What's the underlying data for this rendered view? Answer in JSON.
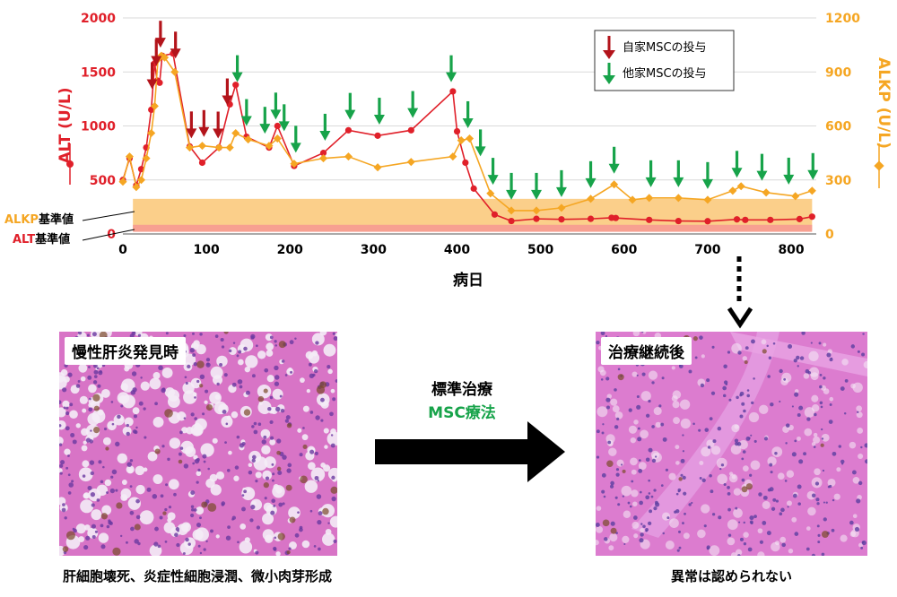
{
  "chart_data": {
    "type": "line",
    "xlabel": "病日",
    "xlim": [
      0,
      830
    ],
    "xticks": [
      0,
      100,
      200,
      300,
      400,
      500,
      600,
      700,
      800
    ],
    "left_axis": {
      "label": "ALT (U/L)",
      "lim": [
        0,
        2000
      ],
      "ticks": [
        0,
        500,
        1000,
        1500,
        2000
      ],
      "color": "#e0202a"
    },
    "right_axis": {
      "label": "ALKP (U/L)",
      "lim": [
        0,
        1200
      ],
      "ticks": [
        0,
        300,
        600,
        900,
        1200
      ],
      "color": "#f5a623"
    },
    "grid": true,
    "series": [
      {
        "name": "ALT",
        "axis": "left",
        "color": "#e0202a",
        "x": [
          0,
          8,
          16,
          22,
          28,
          34,
          38,
          41,
          44,
          47,
          60,
          80,
          95,
          115,
          128,
          135,
          148,
          175,
          185,
          205,
          240,
          270,
          305,
          345,
          395,
          400,
          410,
          420,
          445,
          465,
          495,
          525,
          560,
          585,
          590,
          630,
          665,
          700,
          735,
          745,
          775,
          810,
          825
        ],
        "y": [
          500,
          700,
          450,
          600,
          800,
          1150,
          1580,
          1420,
          1400,
          1650,
          1670,
          810,
          660,
          800,
          1200,
          1380,
          900,
          800,
          1000,
          630,
          750,
          960,
          910,
          960,
          1320,
          950,
          660,
          420,
          180,
          120,
          140,
          135,
          140,
          150,
          148,
          130,
          120,
          118,
          135,
          130,
          130,
          138,
          160
        ]
      },
      {
        "name": "ALKP",
        "axis": "right",
        "color": "#f5a623",
        "x": [
          0,
          8,
          16,
          22,
          28,
          34,
          38,
          42,
          46,
          50,
          62,
          80,
          95,
          115,
          128,
          135,
          150,
          175,
          185,
          205,
          240,
          270,
          305,
          345,
          395,
          405,
          415,
          440,
          465,
          495,
          525,
          560,
          588,
          610,
          630,
          665,
          700,
          730,
          740,
          770,
          805,
          825
        ],
        "y": [
          290,
          430,
          260,
          300,
          420,
          560,
          710,
          970,
          990,
          980,
          900,
          480,
          490,
          480,
          480,
          560,
          525,
          490,
          530,
          390,
          420,
          430,
          370,
          400,
          430,
          520,
          530,
          225,
          130,
          130,
          145,
          195,
          275,
          190,
          200,
          200,
          190,
          240,
          265,
          230,
          210,
          240
        ]
      }
    ],
    "legend": {
      "placement": "top-right",
      "items": [
        {
          "label": "自家MSCの投与",
          "color": "#b3141b"
        },
        {
          "label": "他家MSCの投与",
          "color": "#17a34a"
        }
      ]
    },
    "autologous_msc_days": [
      35,
      40,
      45,
      63,
      82,
      97,
      114,
      125
    ],
    "allogeneic_msc_days": [
      137,
      148,
      170,
      183,
      193,
      207,
      242,
      272,
      307,
      347,
      393,
      413,
      428,
      443,
      465,
      495,
      525,
      560,
      588,
      632,
      665,
      700,
      735,
      765,
      797,
      826
    ],
    "reference_ranges": [
      {
        "label_prefix": "ALKP",
        "label_suffix": "基準値",
        "axis": "right",
        "range": [
          20,
          195
        ],
        "color": "#fbcf8a"
      },
      {
        "label_prefix": "ALT",
        "label_suffix": "基準値",
        "axis": "left",
        "range": [
          20,
          85
        ],
        "color": "#f7a091"
      }
    ]
  },
  "panels": {
    "left": {
      "label": "慢性肝炎発見時",
      "caption": "肝細胞壊死、炎症性細胞浸潤、微小肉芽形成"
    },
    "right": {
      "label": "治療継続後",
      "caption": "異常は認められない"
    }
  },
  "treatment": {
    "line1": "標準治療",
    "line2": "MSC療法"
  },
  "colors": {
    "green": "#17a34a",
    "tissue": "#d773c8"
  }
}
